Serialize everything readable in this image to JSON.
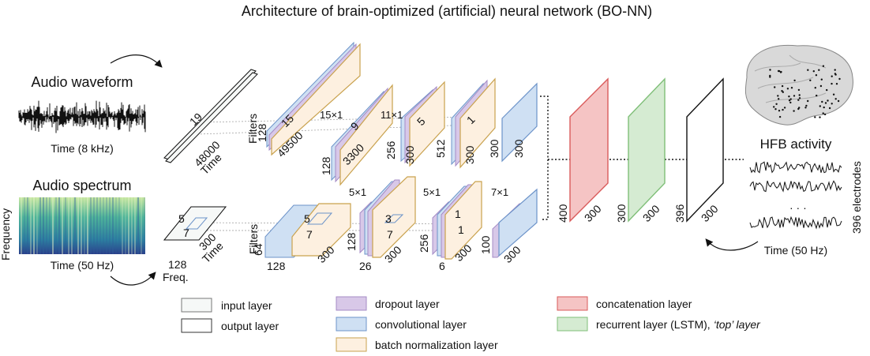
{
  "title": "Architecture of brain-optimized (artificial) neural network (BO-NN)",
  "colors": {
    "input": "#f6f8f7",
    "output": "#ffffff",
    "dropout": "#d8c8e8",
    "dropout_edge": "#a48bc6",
    "conv": "#cfe0f3",
    "conv_edge": "#6c93c9",
    "batchnorm": "#fdf0e0",
    "batchnorm_edge": "#c9a24e",
    "concat": "#f5c4c4",
    "concat_edge": "#d95a5a",
    "recurrent": "#d5ebd2",
    "recurrent_edge": "#7fbf78"
  },
  "left_panel": {
    "waveform_label": "Audio waveform",
    "waveform_axis": "Time (8 kHz)",
    "spectrum_label": "Audio spectrum",
    "spectrum_axis": "Time (50 Hz)",
    "spectrum_yaxis": "Frequency"
  },
  "top_branch": {
    "input": {
      "depth": "19",
      "length": "48000",
      "axis": "Time"
    },
    "filters_label": "Filters",
    "blocks": [
      {
        "filters": "128",
        "length": "49500",
        "kernel": "15"
      },
      {
        "filters": "128",
        "length": "3300",
        "kernel": "9",
        "kernel_size": "15×1"
      },
      {
        "filters": "256",
        "length": "300",
        "kernel": "5",
        "kernel_size": "11×1"
      },
      {
        "filters": "512",
        "length": "300",
        "kernel": "1"
      }
    ],
    "conv_out": {
      "filters": "300",
      "length": "300"
    }
  },
  "bottom_branch": {
    "input": {
      "k1": "5",
      "k2": "7",
      "length": "300",
      "axis": "Time",
      "freq": "128",
      "freq_axis": "Freq."
    },
    "filters_label": "Filters",
    "blocks": [
      {
        "filters": "64",
        "width": "128",
        "length": "300",
        "k1": "5",
        "k2": "7"
      },
      {
        "filters": "128",
        "width": "26",
        "length": "300",
        "k1": "3",
        "k2": "7",
        "kernel_size": "5×1"
      },
      {
        "filters": "256",
        "width": "6",
        "length": "300",
        "k1": "1",
        "k2": "1",
        "kernel_size": "5×1"
      },
      {
        "filters": "100",
        "length": "300",
        "kernel_size": "7×1"
      }
    ]
  },
  "merge": {
    "concat": {
      "units": "400",
      "length": "300"
    },
    "lstm": {
      "units": "300",
      "length": "300"
    },
    "output": {
      "units": "396",
      "length": "300"
    }
  },
  "right_panel": {
    "label": "HFB activity",
    "electrodes": "396 electrodes",
    "ellipsis": "· · ·",
    "axis": "Time (50 Hz)"
  },
  "legend": [
    {
      "key": "input",
      "label": "input layer"
    },
    {
      "key": "output",
      "label": "output layer"
    },
    {
      "key": "dropout",
      "label": "dropout layer"
    },
    {
      "key": "conv",
      "label": "convolutional layer"
    },
    {
      "key": "batchnorm",
      "label": "batch normalization layer"
    },
    {
      "key": "concat",
      "label": "concatenation layer"
    },
    {
      "key": "recurrent",
      "label": "recurrent layer (LSTM),",
      "extra": "‘top’ layer"
    }
  ]
}
